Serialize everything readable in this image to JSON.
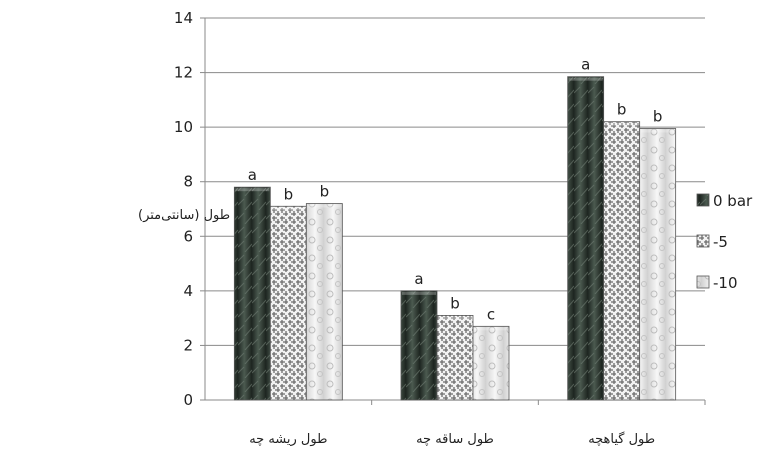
{
  "chart_data": {
    "type": "bar",
    "title": "",
    "ylabel": "طول (سانتی‌متر)",
    "xlabel": "",
    "categories": [
      "طول ریشه چه",
      "طول ساقه چه",
      "طول گیاهچه"
    ],
    "series": [
      {
        "name": "0 bar",
        "values": [
          7.8,
          4.0,
          11.85
        ],
        "labels": [
          "a",
          "a",
          "a"
        ]
      },
      {
        "name": "-5",
        "values": [
          7.1,
          3.1,
          10.2
        ],
        "labels": [
          "b",
          "b",
          "b"
        ]
      },
      {
        "name": "-10",
        "values": [
          7.2,
          2.7,
          9.95
        ],
        "labels": [
          "b",
          "c",
          "b"
        ]
      }
    ],
    "ylim": [
      0,
      14
    ],
    "yticks": [
      "0",
      "2",
      "4",
      "6",
      "8",
      "10",
      "12",
      "14"
    ],
    "grid": true,
    "legend": "right",
    "colors": [
      "#2f3a33",
      "#d6d6d6",
      "#ececec"
    ]
  }
}
